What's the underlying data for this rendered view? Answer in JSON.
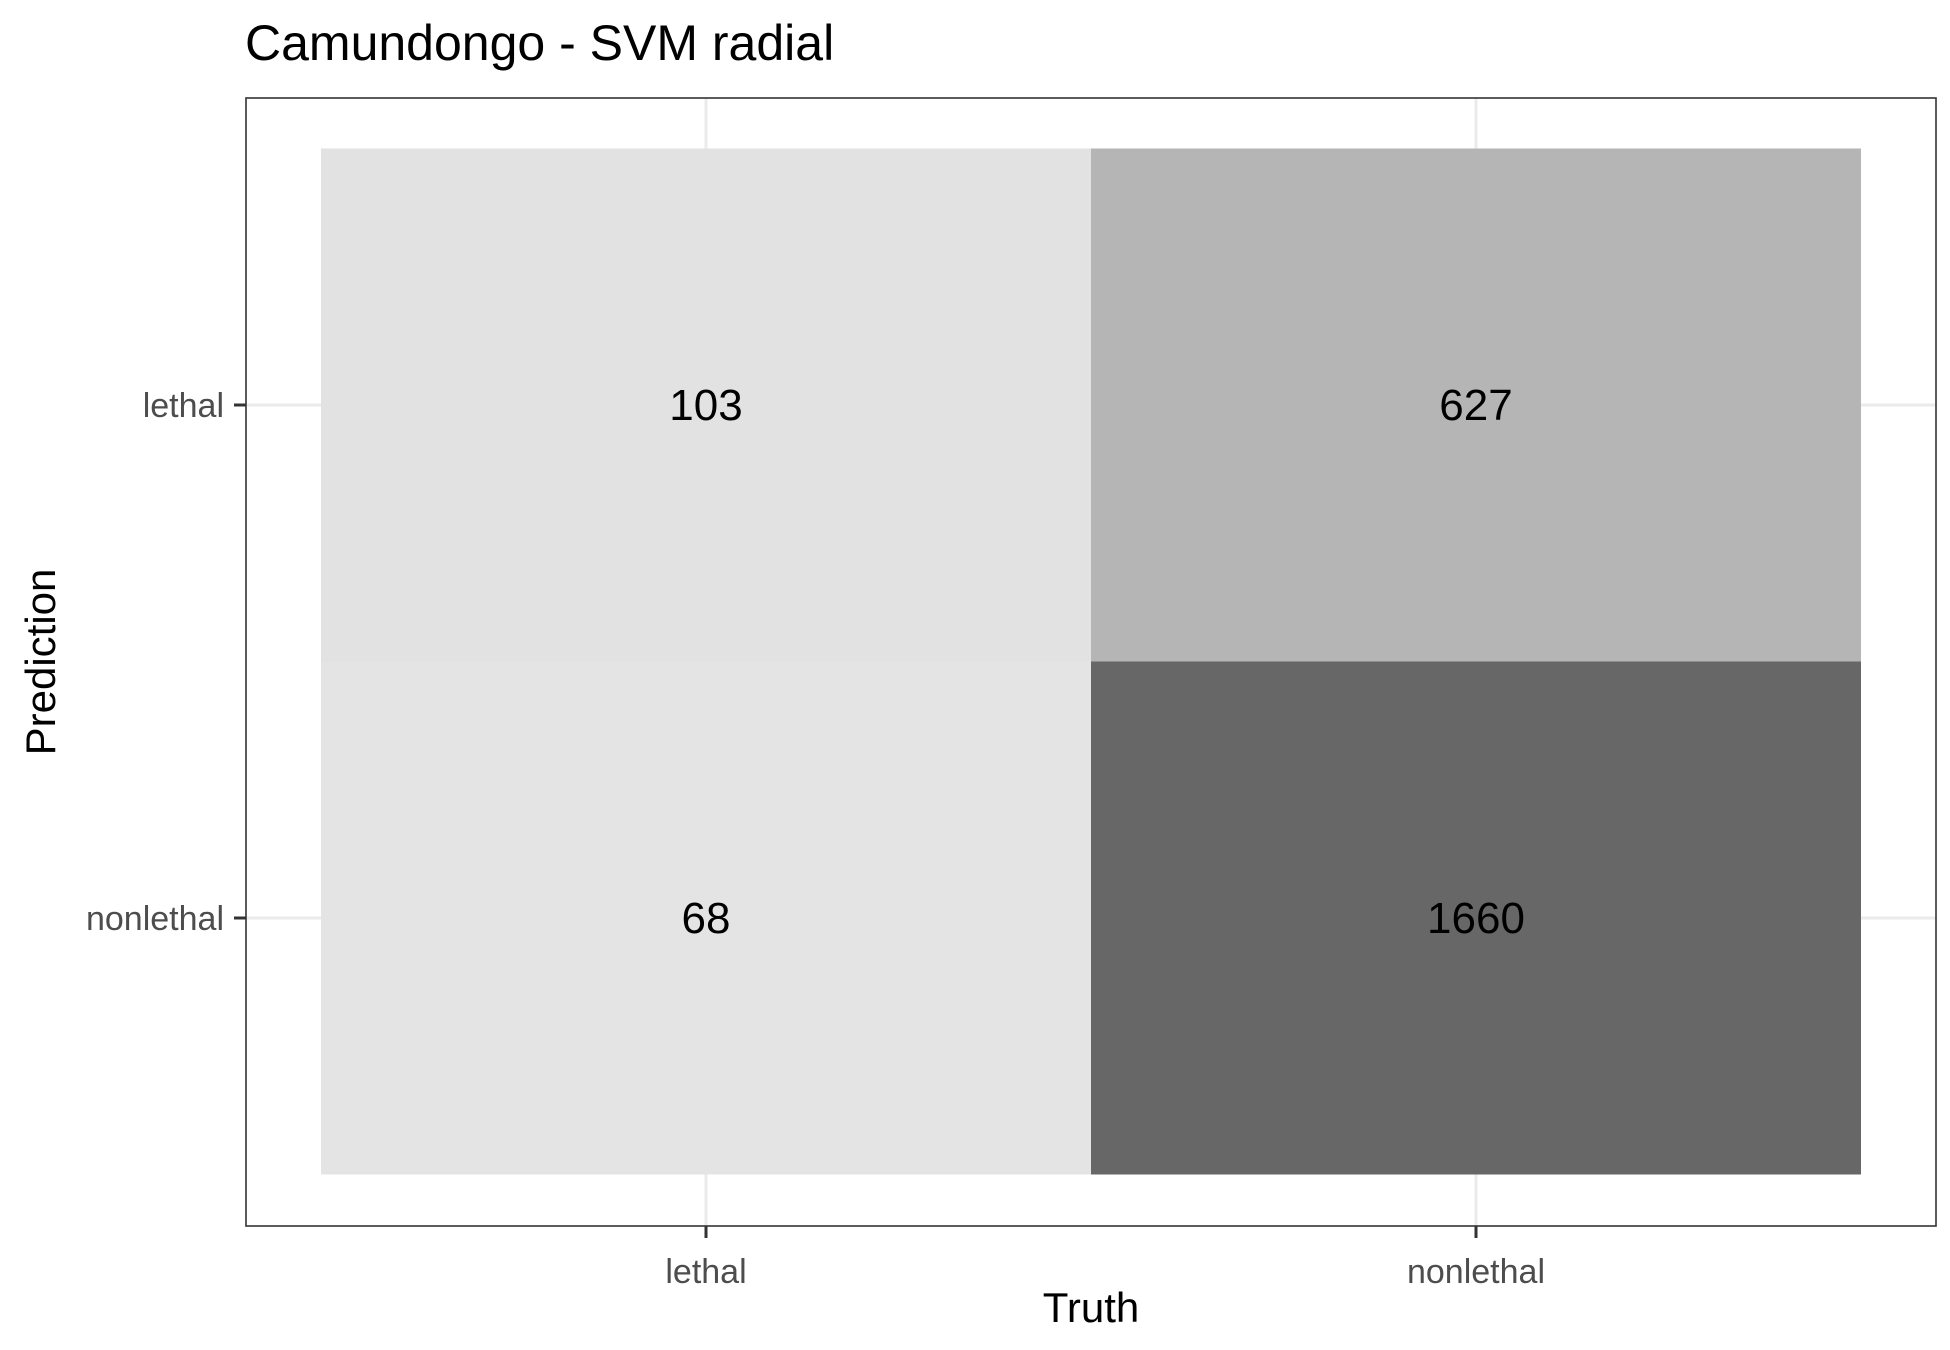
{
  "chart_data": {
    "type": "heatmap",
    "title": "Camundongo - SVM radial",
    "xlabel": "Truth",
    "ylabel": "Prediction",
    "x_categories": [
      "lethal",
      "nonlethal"
    ],
    "y_categories": [
      "lethal",
      "nonlethal"
    ],
    "cells": [
      {
        "truth": "lethal",
        "prediction": "lethal",
        "value": 103,
        "fill": "#e2e2e2"
      },
      {
        "truth": "nonlethal",
        "prediction": "lethal",
        "value": 627,
        "fill": "#b5b5b5"
      },
      {
        "truth": "lethal",
        "prediction": "nonlethal",
        "value": 68,
        "fill": "#e4e4e4"
      },
      {
        "truth": "nonlethal",
        "prediction": "nonlethal",
        "value": 1660,
        "fill": "#676767"
      }
    ],
    "grid": true,
    "legend": "none"
  }
}
